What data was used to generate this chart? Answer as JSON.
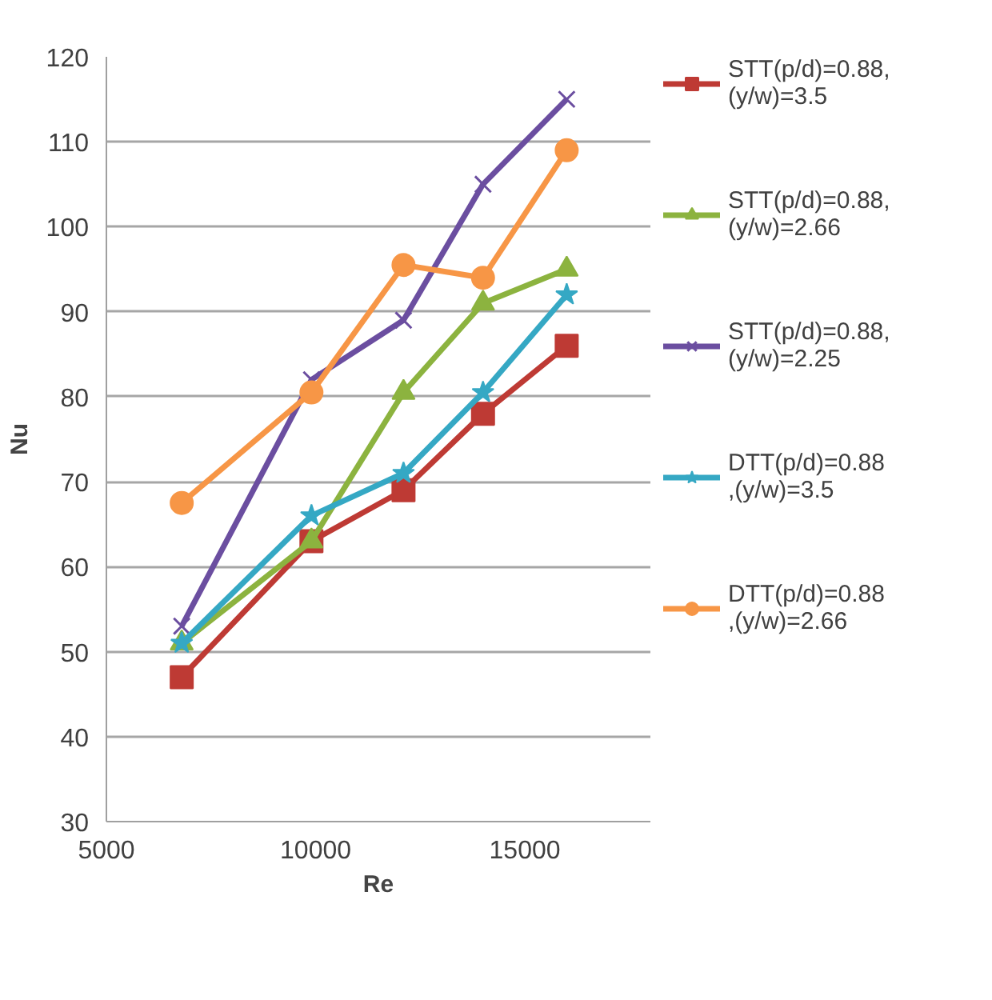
{
  "chart_data": {
    "type": "line",
    "xlabel": "Re",
    "ylabel": "Nu",
    "xlim": [
      5000,
      18000
    ],
    "xticks": [
      5000,
      10000,
      15000
    ],
    "ylim": [
      30,
      120
    ],
    "yticks": [
      30,
      40,
      50,
      60,
      70,
      80,
      90,
      100,
      110,
      120
    ],
    "grid": "y",
    "legend": "right",
    "line_style": "solid",
    "x": [
      6800,
      9900,
      12100,
      14000,
      16000
    ],
    "series": [
      {
        "name": "STT(p/d)=0.88,\n(y/w)=3.5",
        "color": "#be3a34",
        "marker": "square",
        "values": [
          47,
          63,
          69,
          78,
          86
        ]
      },
      {
        "name": "STT(p/d)=0.88,\n(y/w)=2.66",
        "color": "#8cb33f",
        "marker": "triangle",
        "values": [
          51,
          63,
          80.5,
          91,
          95
        ]
      },
      {
        "name": "STT(p/d)=0.88,\n(y/w)=2.25",
        "color": "#6b4ea0",
        "marker": "cross",
        "values": [
          53,
          82,
          89,
          105,
          115
        ]
      },
      {
        "name": "DTT(p/d)=0.88\n,(y/w)=3.5",
        "color": "#35a8c4",
        "marker": "star",
        "values": [
          51,
          66,
          71,
          80.5,
          92
        ]
      },
      {
        "name": "DTT(p/d)=0.88\n,(y/w)=2.66",
        "color": "#f79646",
        "marker": "circle",
        "values": [
          67.5,
          80.5,
          95.5,
          94,
          109
        ]
      }
    ]
  }
}
